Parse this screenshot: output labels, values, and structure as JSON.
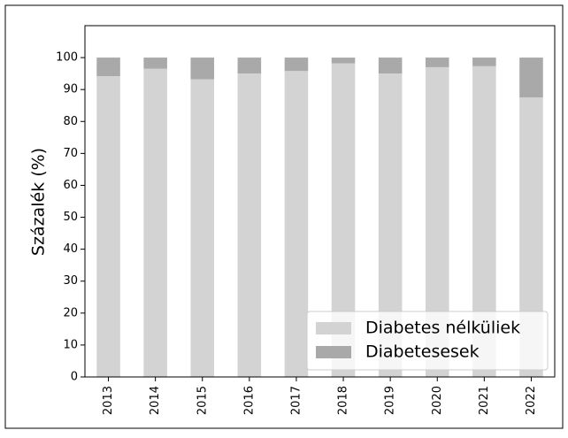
{
  "chart_data": {
    "type": "stacked_bar",
    "ylabel": "Százalék (%)",
    "categories": [
      "2013",
      "2014",
      "2015",
      "2016",
      "2017",
      "2018",
      "2019",
      "2020",
      "2021",
      "2022"
    ],
    "series": [
      {
        "name": "Diabetes nélküliek",
        "color": "#d3d3d3",
        "values": [
          94.2,
          96.5,
          93.2,
          95,
          95.8,
          98.2,
          95,
          97,
          97.3,
          87.5
        ]
      },
      {
        "name": "Diabetesesek",
        "color": "#a9a9a9",
        "values": [
          5.8,
          3.5,
          6.8,
          5,
          4.2,
          1.8,
          5,
          3,
          2.7,
          12.5
        ]
      }
    ],
    "ylim": [
      0,
      110
    ],
    "yticks": [
      0,
      10,
      20,
      30,
      40,
      50,
      60,
      70,
      80,
      90,
      100
    ],
    "legend": "lower right"
  }
}
